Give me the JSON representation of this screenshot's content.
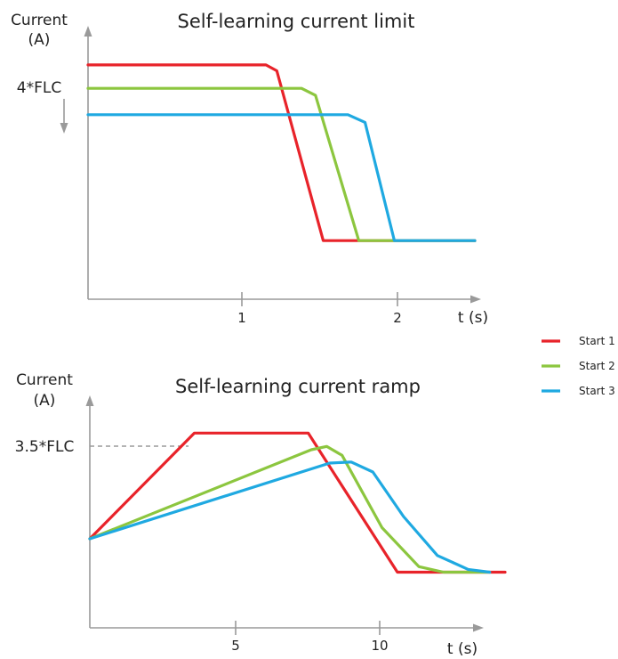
{
  "chart_data": [
    {
      "type": "line",
      "title": "Self-learning current limit",
      "ylabel_line1": "Current",
      "ylabel_line2": "(A)",
      "xlabel": "t (s)",
      "y_annotation": "4*FLC",
      "x_ticks": [
        "1",
        "2"
      ],
      "xlim": [
        0,
        2.5
      ],
      "ylim": [
        0,
        4.5
      ],
      "grid": false,
      "series": [
        {
          "name": "Start 1",
          "color": "#e8232a",
          "x": [
            0,
            1.15,
            1.22,
            1.52,
            2.5
          ],
          "y": [
            4.0,
            4.0,
            3.9,
            1.0,
            1.0
          ]
        },
        {
          "name": "Start 2",
          "color": "#8cc63f",
          "x": [
            0,
            1.38,
            1.47,
            1.75,
            2.5
          ],
          "y": [
            3.6,
            3.6,
            3.48,
            1.0,
            1.0
          ]
        },
        {
          "name": "Start 3",
          "color": "#1fa9e1",
          "x": [
            0,
            1.68,
            1.79,
            1.98,
            2.5
          ],
          "y": [
            3.15,
            3.15,
            3.02,
            1.0,
            1.0
          ]
        }
      ]
    },
    {
      "type": "line",
      "title": "Self-learning current ramp",
      "ylabel_line1": "Current",
      "ylabel_line2": "(A)",
      "xlabel": "t (s)",
      "y_annotation": "3.5*FLC",
      "x_ticks": [
        "5",
        "10"
      ],
      "xlim": [
        0,
        13.5
      ],
      "ylim": [
        0,
        4.0
      ],
      "grid": false,
      "series": [
        {
          "name": "Start 1",
          "color": "#e8232a",
          "x": [
            0,
            3.4,
            7.1,
            10.0,
            13.5
          ],
          "y": [
            1.6,
            3.5,
            3.5,
            1.0,
            1.0
          ]
        },
        {
          "name": "Start 2",
          "color": "#8cc63f",
          "x": [
            0,
            7.2,
            7.7,
            8.2,
            9.5,
            10.7,
            11.5,
            13.0
          ],
          "y": [
            1.6,
            3.2,
            3.26,
            3.1,
            1.8,
            1.1,
            1.0,
            1.0
          ]
        },
        {
          "name": "Start 3",
          "color": "#1fa9e1",
          "x": [
            0,
            7.8,
            8.5,
            9.2,
            10.2,
            11.3,
            12.3,
            13.0
          ],
          "y": [
            1.6,
            2.96,
            2.98,
            2.8,
            2.0,
            1.3,
            1.05,
            1.0
          ]
        }
      ]
    }
  ],
  "legend": [
    {
      "label": "Start 1",
      "color": "#e8232a"
    },
    {
      "label": "Start 2",
      "color": "#8cc63f"
    },
    {
      "label": "Start 3",
      "color": "#1fa9e1"
    }
  ]
}
